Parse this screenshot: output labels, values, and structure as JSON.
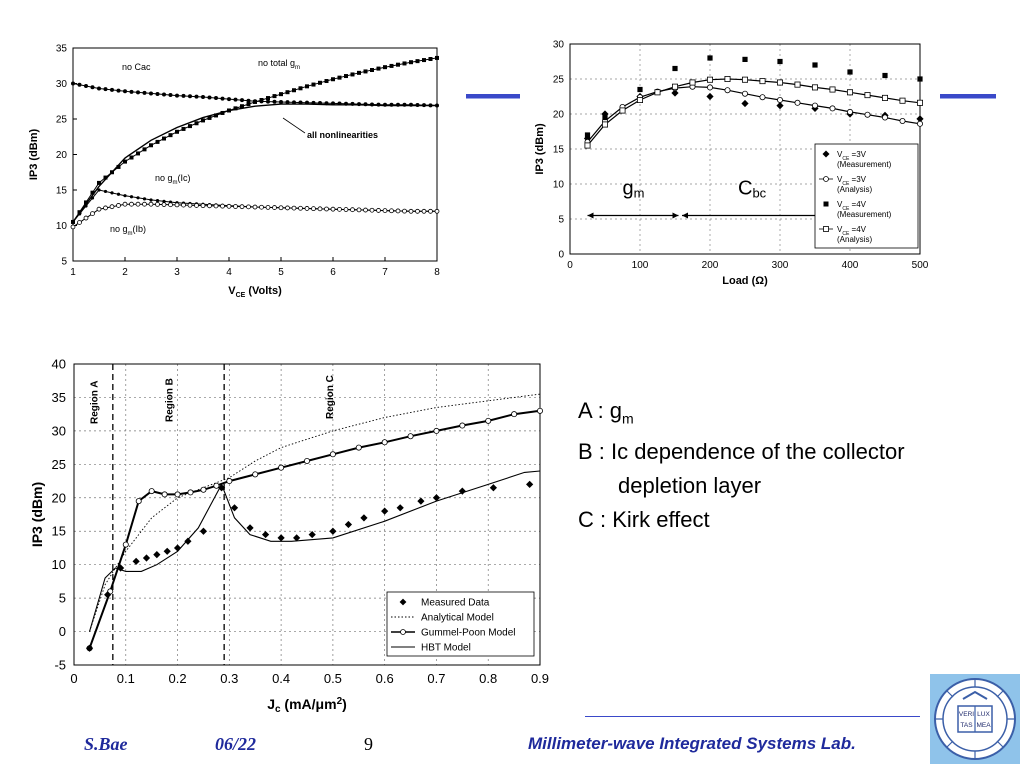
{
  "charts": {
    "chart1": {
      "type": "line",
      "xlabel_main": "V",
      "xlabel_sub": "CE",
      "xlabel_tail": " (Volts)",
      "ylabel": "IP3 (dBm)",
      "xlim": [
        1,
        8
      ],
      "ylim": [
        5,
        35
      ],
      "xticks": [
        "1",
        "2",
        "3",
        "4",
        "5",
        "6",
        "7",
        "8"
      ],
      "yticks": [
        "5",
        "10",
        "15",
        "20",
        "25",
        "30",
        "35"
      ],
      "annotations": {
        "no_cac": "no Cac",
        "no_total_gm": "no total g",
        "no_total_gm_sub": "m",
        "all_nonlin": "all nonlinearities",
        "no_gm_ic": "no g",
        "no_gm_ic_sub": "m",
        "no_gm_ic_tail": "(Ic)",
        "no_gm_ib": "no g",
        "no_gm_ib_sub": "m",
        "no_gm_ib_tail": "(Ib)"
      }
    },
    "chart2": {
      "type": "scatter",
      "xlabel": "Load (Ω)",
      "ylabel": "IP3 (dBm)",
      "xlim": [
        0,
        500
      ],
      "ylim": [
        0,
        30
      ],
      "xticks": [
        "0",
        "100",
        "200",
        "300",
        "400",
        "500"
      ],
      "yticks": [
        "0",
        "5",
        "10",
        "15",
        "20",
        "25",
        "30"
      ],
      "region_gm": "g",
      "region_gm_sub": "m",
      "region_cbc": "C",
      "region_cbc_sub": "bc",
      "legend": [
        {
          "pre": "V",
          "sub": "CE",
          "post": " =3V",
          "note": "(Measurement)",
          "marker": "diamond-filled"
        },
        {
          "pre": "V",
          "sub": "CE",
          "post": " =3V",
          "note": "(Analysis)",
          "marker": "circle-open"
        },
        {
          "pre": "V",
          "sub": "CE",
          "post": " =4V",
          "note": "(Measurement)",
          "marker": "square-filled"
        },
        {
          "pre": "V",
          "sub": "CE",
          "post": " =4V",
          "note": "(Analysis)",
          "marker": "square-open"
        }
      ]
    },
    "chart3": {
      "type": "line",
      "xlabel_main": "J",
      "xlabel_sub": "c",
      "xlabel_tail": " (mA/μm",
      "xlabel_sup": "2",
      "xlabel_end": ")",
      "ylabel": "IP3 (dBm)",
      "xlim": [
        0,
        0.9
      ],
      "ylim": [
        -5,
        40
      ],
      "xticks": [
        "0",
        "0.1",
        "0.2",
        "0.3",
        "0.4",
        "0.5",
        "0.6",
        "0.7",
        "0.8",
        "0.9"
      ],
      "yticks": [
        "-5",
        "0",
        "5",
        "10",
        "15",
        "20",
        "25",
        "30",
        "35",
        "40"
      ],
      "regions": [
        "Region A",
        "Region B",
        "Region C"
      ],
      "legend": [
        "Measured Data",
        "Analytical Model",
        "Gummel-Poon Model",
        "HBT Model"
      ]
    }
  },
  "chart_data": [
    {
      "type": "line",
      "xlabel": "VCE (Volts)",
      "ylabel": "IP3 (dBm)",
      "xlim": [
        1,
        8
      ],
      "ylim": [
        5,
        35
      ],
      "grid": false,
      "series": [
        {
          "name": "no Cac",
          "x": [
            1,
            1.5,
            2,
            2.5,
            3,
            3.5,
            4,
            4.5,
            5,
            5.5,
            6,
            6.5,
            7,
            7.5,
            8
          ],
          "values": [
            30,
            29.3,
            28.9,
            28.6,
            28.3,
            28.1,
            27.8,
            27.5,
            27.4,
            27.3,
            27.2,
            27.1,
            27,
            27,
            26.9
          ]
        },
        {
          "name": "no total gm",
          "x": [
            1,
            1.5,
            2,
            2.5,
            3,
            3.5,
            4,
            4.5,
            5,
            5.5,
            6,
            6.5,
            7,
            7.5,
            8
          ],
          "values": [
            10.5,
            16,
            19,
            21.3,
            23.2,
            24.8,
            26.2,
            27.4,
            28.5,
            29.6,
            30.6,
            31.5,
            32.3,
            33,
            33.6
          ]
        },
        {
          "name": "all nonlinearities",
          "x": [
            1,
            1.5,
            2,
            2.5,
            3,
            3.5,
            4,
            4.5,
            5,
            5.5,
            6,
            6.5,
            7,
            7.5,
            8
          ],
          "values": [
            10.5,
            15.5,
            19.5,
            22,
            23.8,
            25.2,
            26.2,
            26.8,
            27.1,
            27.1,
            27.0,
            27.0,
            26.9,
            26.9,
            26.9
          ]
        },
        {
          "name": "no gm(Ic)",
          "x": [
            1,
            1.5,
            2,
            2.5,
            3,
            3.5,
            4,
            4.5,
            5,
            5.5,
            6,
            6.5,
            7,
            7.5,
            8
          ],
          "values": [
            10.5,
            15,
            14.2,
            13.6,
            13.2,
            13,
            12.8,
            12.6,
            12.5,
            12.4,
            12.3,
            12.2,
            12.1,
            12,
            12
          ]
        },
        {
          "name": "no gm(Ib)",
          "x": [
            1,
            1.5,
            2,
            2.5,
            3,
            3.5,
            4,
            4.5,
            5,
            5.5,
            6,
            6.5,
            7,
            7.5,
            8
          ],
          "values": [
            9.8,
            12.3,
            13,
            13,
            12.9,
            12.8,
            12.7,
            12.6,
            12.5,
            12.4,
            12.3,
            12.2,
            12.1,
            12,
            12
          ]
        }
      ]
    },
    {
      "type": "scatter",
      "xlabel": "Load (Ω)",
      "ylabel": "IP3 (dBm)",
      "xlim": [
        0,
        500
      ],
      "ylim": [
        0,
        30
      ],
      "grid": true,
      "legend_position": "bottom-right",
      "series": [
        {
          "name": "VCE=3V (Measurement)",
          "x": [
            25,
            50,
            100,
            150,
            200,
            250,
            300,
            350,
            400,
            450,
            500
          ],
          "values": [
            16.5,
            20,
            22.5,
            23,
            22.5,
            21.5,
            21.2,
            20.8,
            20,
            19.8,
            19.3
          ]
        },
        {
          "name": "VCE=3V (Analysis)",
          "x": [
            25,
            50,
            75,
            100,
            125,
            150,
            175,
            200,
            225,
            250,
            275,
            300,
            325,
            350,
            375,
            400,
            425,
            450,
            475,
            500
          ],
          "values": [
            16,
            19,
            21,
            22.4,
            23.2,
            23.7,
            23.9,
            23.8,
            23.4,
            22.9,
            22.4,
            22,
            21.6,
            21.2,
            20.8,
            20.3,
            19.9,
            19.5,
            19,
            18.6
          ]
        },
        {
          "name": "VCE=4V (Measurement)",
          "x": [
            25,
            50,
            100,
            150,
            200,
            250,
            300,
            350,
            400,
            450,
            500
          ],
          "values": [
            17,
            19.5,
            23.5,
            26.5,
            28,
            27.8,
            27.5,
            27,
            26,
            25.5,
            25
          ]
        },
        {
          "name": "VCE=4V (Analysis)",
          "x": [
            25,
            50,
            75,
            100,
            125,
            150,
            175,
            200,
            225,
            250,
            275,
            300,
            325,
            350,
            375,
            400,
            425,
            450,
            475,
            500
          ],
          "values": [
            15.5,
            18.5,
            20.5,
            22,
            23.1,
            23.9,
            24.5,
            24.9,
            25,
            24.9,
            24.7,
            24.5,
            24.2,
            23.8,
            23.5,
            23.1,
            22.7,
            22.3,
            21.9,
            21.6
          ]
        }
      ]
    },
    {
      "type": "line",
      "xlabel": "Jc (mA/μm2)",
      "ylabel": "IP3 (dBm)",
      "xlim": [
        0,
        0.9
      ],
      "ylim": [
        -5,
        40
      ],
      "grid": true,
      "legend_position": "bottom-right",
      "series": [
        {
          "name": "Measured Data",
          "x": [
            0.03,
            0.065,
            0.09,
            0.12,
            0.14,
            0.16,
            0.18,
            0.2,
            0.22,
            0.25,
            0.285,
            0.31,
            0.34,
            0.37,
            0.4,
            0.43,
            0.46,
            0.5,
            0.53,
            0.56,
            0.6,
            0.63,
            0.67,
            0.7,
            0.75,
            0.81,
            0.88
          ],
          "values": [
            -2.5,
            5.5,
            9.5,
            10.5,
            11,
            11.5,
            12,
            12.5,
            13.5,
            15,
            21.5,
            18.5,
            15.5,
            14.5,
            14,
            14,
            14.5,
            15,
            16,
            17,
            18,
            18.5,
            19.5,
            20,
            21,
            21.5,
            22
          ]
        },
        {
          "name": "Analytical Model",
          "x": [
            0.03,
            0.06,
            0.1,
            0.15,
            0.2,
            0.25,
            0.3,
            0.35,
            0.4,
            0.5,
            0.6,
            0.7,
            0.8,
            0.9
          ],
          "values": [
            0,
            7,
            12,
            17,
            20,
            21.5,
            23,
            25.5,
            27.5,
            30,
            32,
            33.5,
            34.5,
            35.5
          ]
        },
        {
          "name": "Gummel-Poon Model",
          "x": [
            0.03,
            0.07,
            0.1,
            0.125,
            0.15,
            0.175,
            0.2,
            0.225,
            0.25,
            0.275,
            0.3,
            0.35,
            0.4,
            0.45,
            0.5,
            0.55,
            0.6,
            0.65,
            0.7,
            0.75,
            0.8,
            0.85,
            0.9
          ],
          "values": [
            -2.5,
            6,
            13,
            19.5,
            21,
            20.5,
            20.5,
            20.8,
            21.2,
            21.8,
            22.5,
            23.5,
            24.5,
            25.5,
            26.5,
            27.5,
            28.3,
            29.2,
            30,
            30.8,
            31.5,
            32.5,
            33
          ]
        },
        {
          "name": "HBT Model",
          "x": [
            0.03,
            0.06,
            0.08,
            0.1,
            0.13,
            0.16,
            0.2,
            0.24,
            0.285,
            0.31,
            0.34,
            0.38,
            0.42,
            0.5,
            0.6,
            0.7,
            0.8,
            0.87,
            0.9
          ],
          "values": [
            0,
            8,
            9.5,
            9,
            9,
            10,
            12,
            15.5,
            22,
            17,
            14.5,
            13.5,
            13.5,
            14,
            16.5,
            19.5,
            22,
            23.8,
            24
          ]
        }
      ]
    }
  ],
  "notes": {
    "a_prefix": "A : g",
    "a_sub": "m",
    "b_line1": "B : Ic dependence of the collector",
    "b_line2": "depletion layer",
    "c_line": "C : Kirk effect"
  },
  "footer": {
    "author": "S.Bae",
    "date": "06/22",
    "page": "9",
    "lab": "Millimeter-wave Integrated Systems Lab."
  },
  "logo": {
    "text1": "VERI",
    "text2": "LUX",
    "text3": "TAS",
    "text4": "MEA"
  },
  "colors": {
    "accent": "#3a49c9",
    "footer_text": "#1f2a9c"
  }
}
